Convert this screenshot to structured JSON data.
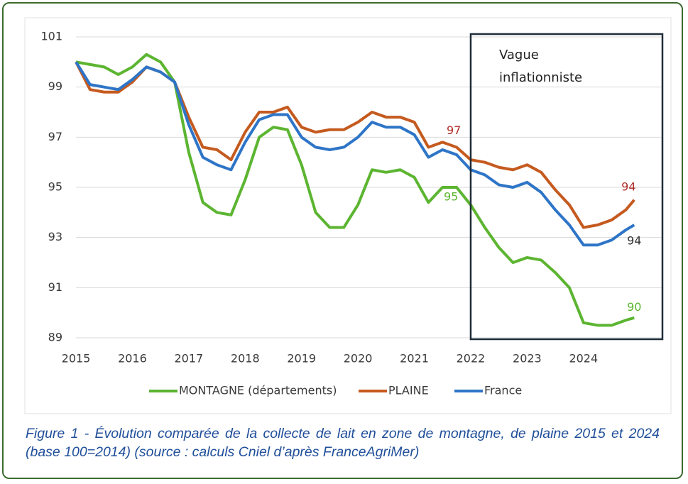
{
  "chart_data": {
    "type": "line",
    "x": [
      2015,
      2015.25,
      2015.5,
      2015.75,
      2016,
      2016.25,
      2016.5,
      2016.75,
      2017,
      2017.25,
      2017.5,
      2017.75,
      2018,
      2018.25,
      2018.5,
      2018.75,
      2019,
      2019.25,
      2019.5,
      2019.75,
      2020,
      2020.25,
      2020.5,
      2020.75,
      2021,
      2021.25,
      2021.5,
      2021.75,
      2022,
      2022.25,
      2022.5,
      2022.75,
      2023,
      2023.25,
      2023.5,
      2023.75,
      2024,
      2024.25,
      2024.5,
      2024.75,
      2024.9
    ],
    "series": [
      {
        "name": "MONTAGNE (départements)",
        "color": "#5cb531",
        "values": [
          100,
          99.9,
          99.8,
          99.5,
          99.8,
          100.3,
          100.0,
          99.2,
          96.4,
          94.4,
          94.0,
          93.9,
          95.3,
          97.0,
          97.4,
          97.3,
          95.9,
          94.0,
          93.4,
          93.4,
          94.3,
          95.7,
          95.6,
          95.7,
          95.4,
          94.4,
          95.0,
          95.0,
          94.3,
          93.4,
          92.6,
          92.0,
          92.2,
          92.1,
          91.6,
          91.0,
          89.6,
          89.5,
          89.5,
          89.7,
          89.8
        ]
      },
      {
        "name": "PLAINE",
        "color": "#c55a1f",
        "values": [
          100,
          98.9,
          98.8,
          98.8,
          99.2,
          99.8,
          99.6,
          99.2,
          97.8,
          96.6,
          96.5,
          96.1,
          97.2,
          98.0,
          98.0,
          98.2,
          97.4,
          97.2,
          97.3,
          97.3,
          97.6,
          98.0,
          97.8,
          97.8,
          97.6,
          96.6,
          96.8,
          96.6,
          96.1,
          96.0,
          95.8,
          95.7,
          95.9,
          95.6,
          94.9,
          94.3,
          93.4,
          93.5,
          93.7,
          94.1,
          94.5
        ]
      },
      {
        "name": "France",
        "color": "#2e75c7",
        "values": [
          100,
          99.1,
          99.0,
          98.9,
          99.3,
          99.8,
          99.6,
          99.2,
          97.5,
          96.2,
          95.9,
          95.7,
          96.8,
          97.7,
          97.9,
          97.9,
          97.0,
          96.6,
          96.5,
          96.6,
          97.0,
          97.6,
          97.4,
          97.4,
          97.1,
          96.2,
          96.5,
          96.3,
          95.7,
          95.5,
          95.1,
          95.0,
          95.2,
          94.8,
          94.1,
          93.5,
          92.7,
          92.7,
          92.9,
          93.3,
          93.5
        ]
      }
    ],
    "xlim": [
      2015,
      2025.4
    ],
    "xticks": [
      2015,
      2016,
      2017,
      2018,
      2019,
      2020,
      2021,
      2022,
      2023,
      2024
    ],
    "ylim": [
      89,
      101
    ],
    "yticks": [
      89,
      91,
      93,
      95,
      97,
      99,
      101
    ],
    "grid": true,
    "legend": "bottom",
    "highlight": {
      "text": [
        "Vague",
        "inflationniste"
      ],
      "from": 2022
    },
    "annotations": [
      {
        "text": 97,
        "x": 2021.7,
        "y": 97.25,
        "color": "#b0302a"
      },
      {
        "text": 95,
        "x": 2021.65,
        "y": 94.6,
        "color": "#5cb531"
      },
      {
        "text": 94,
        "x": 2024.8,
        "y": 95.0,
        "color": "#b0302a"
      },
      {
        "text": 94,
        "x": 2024.9,
        "y": 92.85,
        "color": "#333333"
      },
      {
        "text": 90,
        "x": 2024.9,
        "y": 90.2,
        "color": "#5cb531"
      }
    ]
  },
  "caption": "Figure 1 - Évolution comparée de la collecte de lait en zone de montagne, de plaine 2015 et 2024 (base 100=2014) (source : calculs Cniel d’après FranceAgriMer)"
}
